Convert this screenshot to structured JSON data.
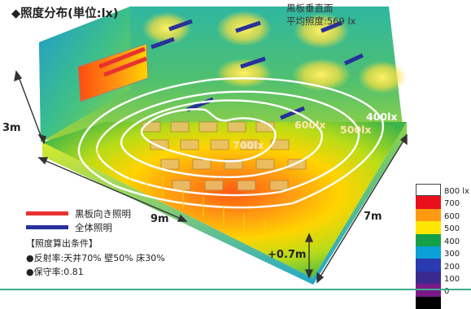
{
  "header": {
    "title": "◆照度分布(単位:lx)",
    "blackboard_line1": "黒板垂直面",
    "blackboard_line2": "平均照度:569 lx"
  },
  "dimensions": {
    "height": "3m",
    "width": "9m",
    "depth": "7m",
    "desk_height": "+0.7m"
  },
  "contours": {
    "c400": "400lx",
    "c500": "500lx",
    "c600": "600lx",
    "c700": "700lx"
  },
  "line_legend": {
    "blackboard_light": {
      "label": "黒板向き照明",
      "color": "#e8322f"
    },
    "general_light": {
      "label": "全体照明",
      "color": "#28309a"
    }
  },
  "conditions": {
    "heading": "【照度算出条件】",
    "reflectance": "●反射率:天井70% 壁50% 床30%",
    "maintenance": "●保守率:0.81"
  },
  "colorbar": {
    "labels": [
      "800 lx",
      "700",
      "600",
      "500",
      "400",
      "300",
      "200",
      "100",
      "0"
    ],
    "colors": [
      "#ffffff",
      "#e8101a",
      "#ff9a10",
      "#ffe600",
      "#14a048",
      "#0aa0d8",
      "#2a3ab0",
      "#3a2a90",
      "#7a1a8a",
      "#000000"
    ]
  }
}
